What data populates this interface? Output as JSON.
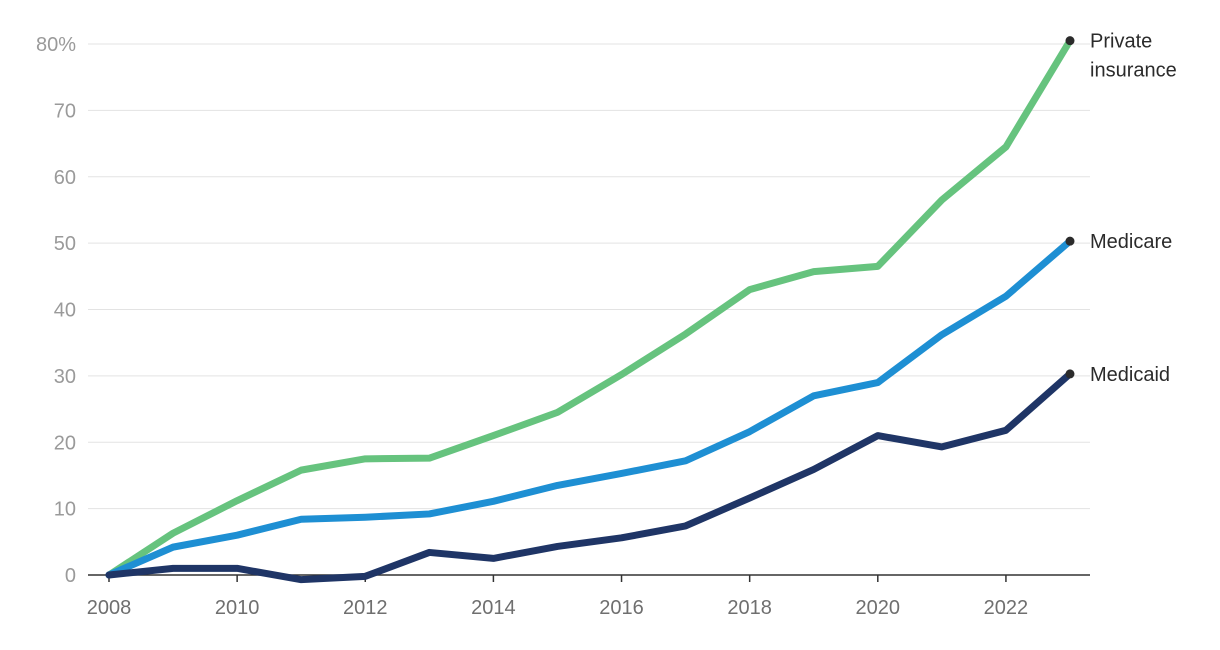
{
  "chart_data": {
    "type": "line",
    "title": "",
    "xlabel": "",
    "ylabel": "",
    "x": [
      2008,
      2009,
      2010,
      2011,
      2012,
      2013,
      2014,
      2015,
      2016,
      2017,
      2018,
      2019,
      2020,
      2021,
      2022,
      2023
    ],
    "xticks": [
      "2008",
      "2010",
      "2012",
      "2014",
      "2016",
      "2018",
      "2020",
      "2022"
    ],
    "xlim": [
      2008,
      2023
    ],
    "yticks": [
      {
        "value": 0,
        "label": "0"
      },
      {
        "value": 10,
        "label": "10"
      },
      {
        "value": 20,
        "label": "20"
      },
      {
        "value": 30,
        "label": "30"
      },
      {
        "value": 40,
        "label": "40"
      },
      {
        "value": 50,
        "label": "50"
      },
      {
        "value": 60,
        "label": "60"
      },
      {
        "value": 70,
        "label": "70"
      },
      {
        "value": 80,
        "label": "80%"
      }
    ],
    "ylim": [
      0,
      80
    ],
    "grid": true,
    "series": [
      {
        "name": "Private insurance",
        "label_lines": [
          "Private",
          "insurance"
        ],
        "color": "#66c37e",
        "values": [
          0,
          6.3,
          11.2,
          15.8,
          17.5,
          17.6,
          21.0,
          24.5,
          30.2,
          36.3,
          43.0,
          45.7,
          46.5,
          56.5,
          64.5,
          80.5
        ]
      },
      {
        "name": "Medicare",
        "label_lines": [
          "Medicare"
        ],
        "color": "#1e8fd3",
        "values": [
          0,
          4.2,
          6.0,
          8.4,
          8.7,
          9.2,
          11.1,
          13.5,
          15.3,
          17.2,
          21.6,
          27.0,
          29.0,
          36.2,
          42.0,
          50.3
        ]
      },
      {
        "name": "Medicaid",
        "label_lines": [
          "Medicaid"
        ],
        "color": "#1f3566",
        "values": [
          0,
          1.0,
          1.0,
          -0.7,
          -0.2,
          3.4,
          2.5,
          4.3,
          5.6,
          7.4,
          11.6,
          15.9,
          21.0,
          19.3,
          21.8,
          30.3
        ]
      }
    ]
  }
}
